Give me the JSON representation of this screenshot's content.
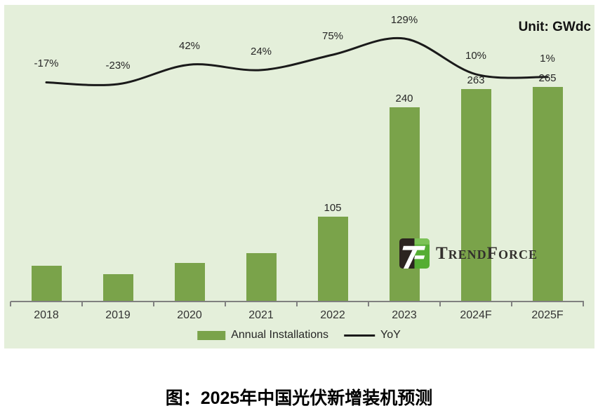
{
  "chart": {
    "unit_label": "Unit: GWdc"
  },
  "logo": {
    "wordmark": "TrendForce"
  },
  "legend": {
    "bars_label": "Annual Installations",
    "line_label": "YoY"
  },
  "caption": "图：2025年中国光伏新增装机预测",
  "colors": {
    "chart_bg": "#e4efda",
    "bar_green": "#7aa34a",
    "line_black": "#1a1a1a",
    "axis_gray": "#808080",
    "text_dark": "#262626",
    "logo_dark": "#2c2420",
    "logo_green": "#55ad33",
    "logo_green_light": "#7cc256"
  },
  "chart_data": {
    "type": "bar",
    "combo": "bar+line",
    "title": "图：2025年中国光伏新增装机预测",
    "unit": "GWdc",
    "categories": [
      "2018",
      "2019",
      "2020",
      "2021",
      "2022",
      "2023",
      "2024F",
      "2025F"
    ],
    "series": [
      {
        "name": "Annual Installations",
        "type": "bar",
        "unit": "GWdc",
        "values": [
          44,
          34,
          48,
          60,
          105,
          240,
          263,
          265
        ],
        "visible_value_labels": [
          "",
          "",
          "",
          "",
          "105",
          "240",
          "263",
          "265"
        ]
      },
      {
        "name": "YoY",
        "type": "line",
        "unit": "%",
        "values": [
          -17,
          -23,
          42,
          24,
          75,
          129,
          10,
          1
        ],
        "visible_value_labels": [
          "-17%",
          "-23%",
          "42%",
          "24%",
          "75%",
          "129%",
          "10%",
          "1%"
        ]
      }
    ],
    "xlabel": "",
    "ylabel": "",
    "legend_position": "bottom-center",
    "grid": false,
    "value_axis_labeled": false
  }
}
